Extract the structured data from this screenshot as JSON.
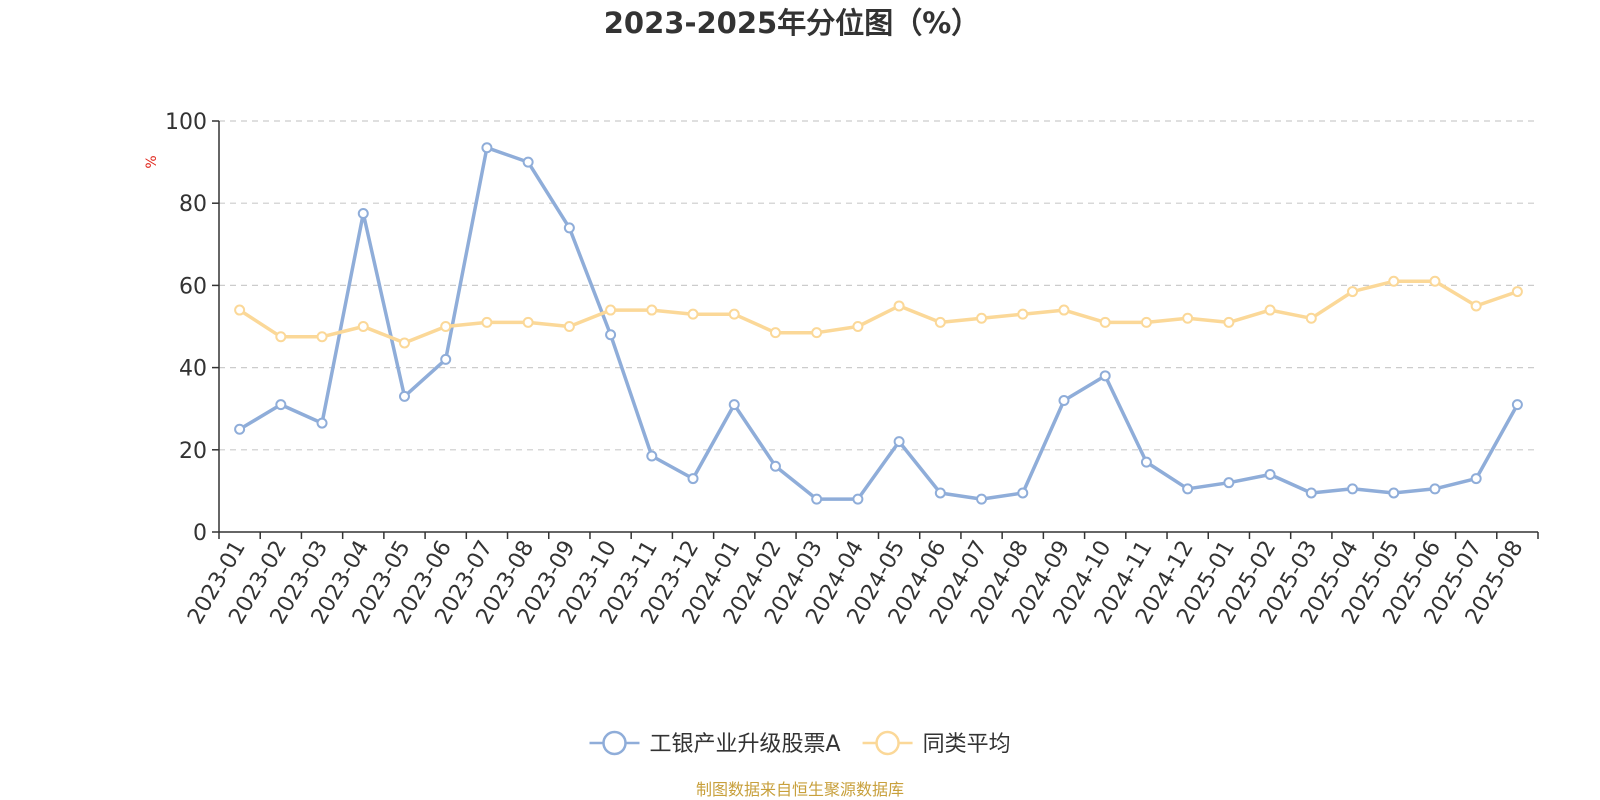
{
  "chart_data": {
    "type": "line",
    "title": "2023-2025年分位图（%）",
    "y_unit": "%",
    "ylim": [
      0,
      100
    ],
    "y_ticks": [
      0,
      20,
      40,
      60,
      80,
      100
    ],
    "grid": "horizontal dashed",
    "legend_position": "bottom-center",
    "categories": [
      "2023-01",
      "2023-02",
      "2023-03",
      "2023-04",
      "2023-05",
      "2023-06",
      "2023-07",
      "2023-08",
      "2023-09",
      "2023-10",
      "2023-11",
      "2023-12",
      "2024-01",
      "2024-02",
      "2024-03",
      "2024-04",
      "2024-05",
      "2024-06",
      "2024-07",
      "2024-08",
      "2024-09",
      "2024-10",
      "2024-11",
      "2024-12",
      "2025-01",
      "2025-02",
      "2025-03",
      "2025-04",
      "2025-05",
      "2025-06",
      "2025-07",
      "2025-08"
    ],
    "series": [
      {
        "name": "工银产业升级股票A",
        "color": "#8fadd9",
        "values": [
          25,
          31,
          26.5,
          77.5,
          33,
          42,
          93.5,
          90,
          74,
          48,
          18.5,
          13,
          31,
          16,
          8,
          8,
          22,
          9.5,
          8,
          9.5,
          32,
          38,
          17,
          10.5,
          12,
          14,
          9.5,
          10.5,
          9.5,
          10.5,
          13,
          31
        ]
      },
      {
        "name": "同类平均",
        "color": "#fbd898",
        "values": [
          54,
          47.5,
          47.5,
          50,
          46,
          50,
          51,
          51,
          50,
          54,
          54,
          53,
          53,
          48.5,
          48.5,
          50,
          55,
          51,
          52,
          53,
          54,
          51,
          51,
          52,
          51,
          54,
          52,
          58.5,
          61,
          61,
          55,
          58.5
        ]
      }
    ]
  },
  "source_text": "制图数据来自恒生聚源数据库",
  "colors": {
    "axis": "#333333",
    "grid": "#cccccc",
    "unit": "#e0281e",
    "source": "#c8a03c",
    "marker_fill": "#ffffff"
  }
}
